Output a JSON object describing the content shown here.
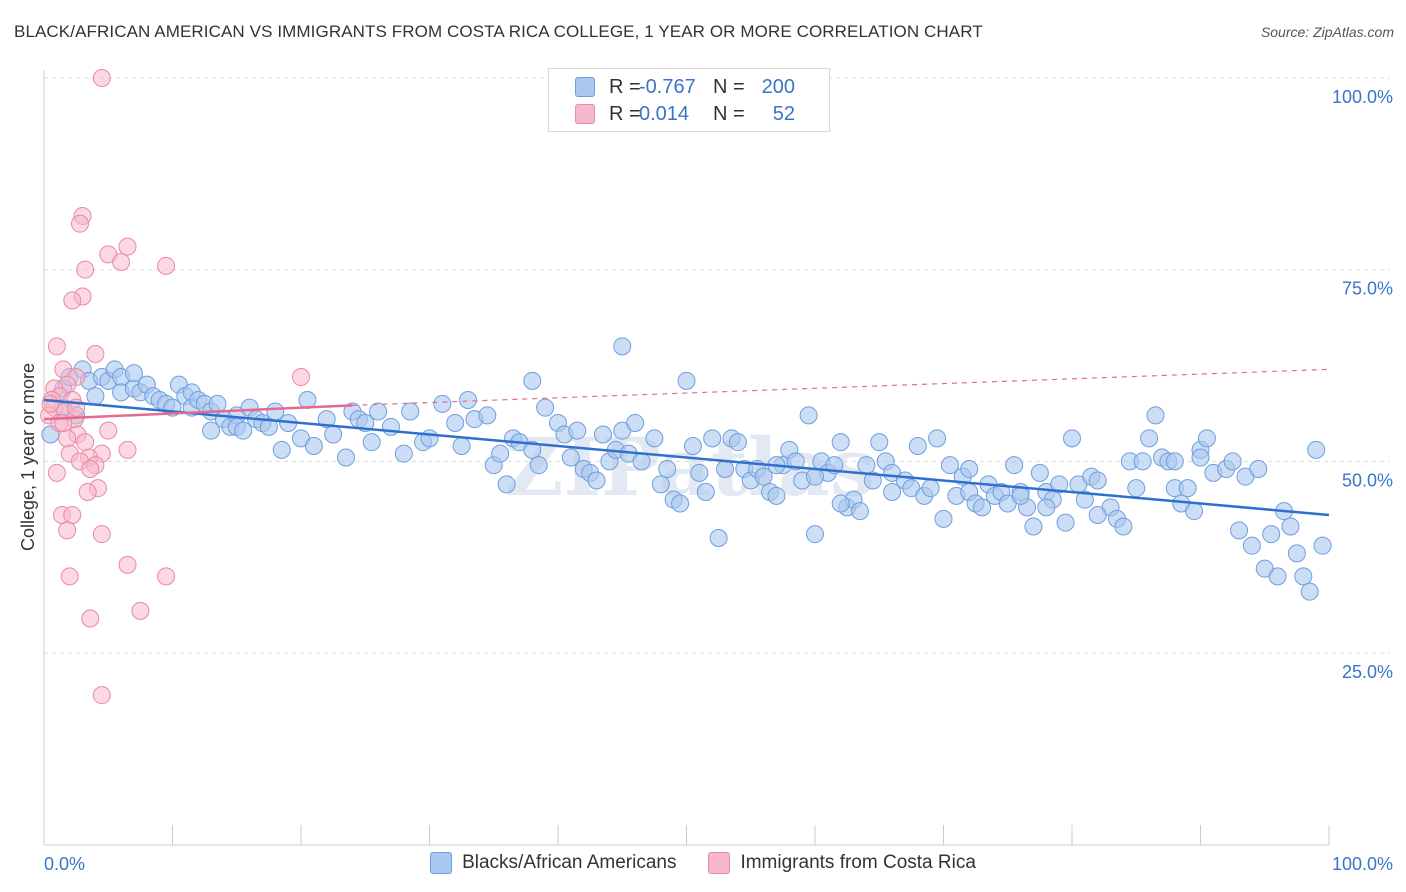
{
  "title": "BLACK/AFRICAN AMERICAN VS IMMIGRANTS FROM COSTA RICA COLLEGE, 1 YEAR OR MORE CORRELATION CHART",
  "source": "Source: ZipAtlas.com",
  "watermark": "ZIPatlas",
  "colors": {
    "blue_fill": "#aac8ef",
    "blue_stroke": "#6f9ede",
    "blue_line": "#2f6fcf",
    "pink_fill": "#f7b8cb",
    "pink_stroke": "#e98aa6",
    "pink_line": "#e36b93",
    "axis_label": "#3a74c9",
    "grid": "#d9d9d9"
  },
  "legend": {
    "rows": [
      {
        "r_label": "R =",
        "r_value": "-0.767",
        "n_label": "N =",
        "n_value": "200",
        "color": "#aac8ef"
      },
      {
        "r_label": "R =",
        "r_value": "0.014",
        "n_label": "N =",
        "n_value": "52",
        "color": "#f7b8cb"
      }
    ]
  },
  "bottom_legend": [
    {
      "label": "Blacks/African Americans",
      "color": "#aac8ef"
    },
    {
      "label": "Immigrants from Costa Rica",
      "color": "#f7b8cb"
    }
  ],
  "chart_data": {
    "type": "scatter",
    "title": "BLACK/AFRICAN AMERICAN VS IMMIGRANTS FROM COSTA RICA COLLEGE, 1 YEAR OR MORE CORRELATION CHART",
    "xlabel": "",
    "ylabel": "College, 1 year or more",
    "xlim": [
      0,
      100
    ],
    "ylim": [
      0,
      102
    ],
    "x_ticks": [
      "0.0%",
      "100.0%"
    ],
    "y_ticks": [
      {
        "value": 25,
        "label": "25.0%"
      },
      {
        "value": 50,
        "label": "50.0%"
      },
      {
        "value": 75,
        "label": "75.0%"
      },
      {
        "value": 100,
        "label": "100.0%"
      }
    ],
    "grid": true,
    "legend_position": "top-center",
    "series": [
      {
        "name": "Blacks/African Americans",
        "color": "#aac8ef",
        "trend": {
          "x0": 0,
          "y0": 58,
          "x1": 100,
          "y1": 43
        },
        "points": [
          [
            0.5,
            53.5
          ],
          [
            1.5,
            57.0
          ],
          [
            1.5,
            59.5
          ],
          [
            2.0,
            61.0
          ],
          [
            2.5,
            56.0
          ],
          [
            3.0,
            62.0
          ],
          [
            3.5,
            60.5
          ],
          [
            4.0,
            58.5
          ],
          [
            4.5,
            61.0
          ],
          [
            5.0,
            60.5
          ],
          [
            5.5,
            62.0
          ],
          [
            6.0,
            61.0
          ],
          [
            6.0,
            59.0
          ],
          [
            7.0,
            59.5
          ],
          [
            7.0,
            61.5
          ],
          [
            7.5,
            59.0
          ],
          [
            8.0,
            60.0
          ],
          [
            8.5,
            58.5
          ],
          [
            9.0,
            58.0
          ],
          [
            9.5,
            57.5
          ],
          [
            10.0,
            57.0
          ],
          [
            10.5,
            60.0
          ],
          [
            11.0,
            58.5
          ],
          [
            11.5,
            59.0
          ],
          [
            11.5,
            57.0
          ],
          [
            12.0,
            58.0
          ],
          [
            12.5,
            57.5
          ],
          [
            13.0,
            56.5
          ],
          [
            13.0,
            54.0
          ],
          [
            13.5,
            57.5
          ],
          [
            14.0,
            55.5
          ],
          [
            14.5,
            54.5
          ],
          [
            15.0,
            56.0
          ],
          [
            15.0,
            54.5
          ],
          [
            15.5,
            54.0
          ],
          [
            16.0,
            57.0
          ],
          [
            16.5,
            55.5
          ],
          [
            17.0,
            55.0
          ],
          [
            17.5,
            54.5
          ],
          [
            18.0,
            56.5
          ],
          [
            18.5,
            51.5
          ],
          [
            19.0,
            55.0
          ],
          [
            20.0,
            53.0
          ],
          [
            20.5,
            58.0
          ],
          [
            21.0,
            52.0
          ],
          [
            22.0,
            55.5
          ],
          [
            22.5,
            53.5
          ],
          [
            23.5,
            50.5
          ],
          [
            24.0,
            56.5
          ],
          [
            24.5,
            55.5
          ],
          [
            25.0,
            55.0
          ],
          [
            25.5,
            52.5
          ],
          [
            26.0,
            56.5
          ],
          [
            27.0,
            54.5
          ],
          [
            28.0,
            51.0
          ],
          [
            28.5,
            56.5
          ],
          [
            29.5,
            52.5
          ],
          [
            30.0,
            53.0
          ],
          [
            31.0,
            57.5
          ],
          [
            32.0,
            55.0
          ],
          [
            32.5,
            52.0
          ],
          [
            33.0,
            58.0
          ],
          [
            33.5,
            55.5
          ],
          [
            34.5,
            56.0
          ],
          [
            35.0,
            49.5
          ],
          [
            35.5,
            51.0
          ],
          [
            36.0,
            47.0
          ],
          [
            36.5,
            53.0
          ],
          [
            37.0,
            52.5
          ],
          [
            38.0,
            51.5
          ],
          [
            38.5,
            49.5
          ],
          [
            39.0,
            57.0
          ],
          [
            40.0,
            55.0
          ],
          [
            40.5,
            53.5
          ],
          [
            41.0,
            50.5
          ],
          [
            41.5,
            54.0
          ],
          [
            42.0,
            49.0
          ],
          [
            42.5,
            48.5
          ],
          [
            43.0,
            47.5
          ],
          [
            43.5,
            53.5
          ],
          [
            44.0,
            50.0
          ],
          [
            44.5,
            51.5
          ],
          [
            45.0,
            54.0
          ],
          [
            45.5,
            51.0
          ],
          [
            46.0,
            55.0
          ],
          [
            46.5,
            50.0
          ],
          [
            47.5,
            53.0
          ],
          [
            48.0,
            47.0
          ],
          [
            48.5,
            49.0
          ],
          [
            49.0,
            45.0
          ],
          [
            49.5,
            44.5
          ],
          [
            50.5,
            52.0
          ],
          [
            51.0,
            48.5
          ],
          [
            51.5,
            46.0
          ],
          [
            52.0,
            53.0
          ],
          [
            52.5,
            40.0
          ],
          [
            53.0,
            49.0
          ],
          [
            53.5,
            53.0
          ],
          [
            54.0,
            52.5
          ],
          [
            54.5,
            49.0
          ],
          [
            55.0,
            47.5
          ],
          [
            55.5,
            49.0
          ],
          [
            56.0,
            48.0
          ],
          [
            56.5,
            46.0
          ],
          [
            57.0,
            45.5
          ],
          [
            57.5,
            49.5
          ],
          [
            58.0,
            51.5
          ],
          [
            58.5,
            50.0
          ],
          [
            59.0,
            47.5
          ],
          [
            59.5,
            56.0
          ],
          [
            60.0,
            40.5
          ],
          [
            60.5,
            50.0
          ],
          [
            61.0,
            48.5
          ],
          [
            61.5,
            49.5
          ],
          [
            62.0,
            52.5
          ],
          [
            62.5,
            44.0
          ],
          [
            63.0,
            45.0
          ],
          [
            63.5,
            43.5
          ],
          [
            64.0,
            49.5
          ],
          [
            64.5,
            47.5
          ],
          [
            65.0,
            52.5
          ],
          [
            65.5,
            50.0
          ],
          [
            66.0,
            48.5
          ],
          [
            67.0,
            47.5
          ],
          [
            67.5,
            46.5
          ],
          [
            68.0,
            52.0
          ],
          [
            68.5,
            45.5
          ],
          [
            69.0,
            46.5
          ],
          [
            69.5,
            53.0
          ],
          [
            70.0,
            42.5
          ],
          [
            70.5,
            49.5
          ],
          [
            71.0,
            45.5
          ],
          [
            71.5,
            48.0
          ],
          [
            72.0,
            46.0
          ],
          [
            72.5,
            44.5
          ],
          [
            73.0,
            44.0
          ],
          [
            73.5,
            47.0
          ],
          [
            74.0,
            45.5
          ],
          [
            74.5,
            46.0
          ],
          [
            75.0,
            44.5
          ],
          [
            75.5,
            49.5
          ],
          [
            76.0,
            46.0
          ],
          [
            76.5,
            44.0
          ],
          [
            77.0,
            41.5
          ],
          [
            77.5,
            48.5
          ],
          [
            78.0,
            46.0
          ],
          [
            78.5,
            45.0
          ],
          [
            79.0,
            47.0
          ],
          [
            79.5,
            42.0
          ],
          [
            80.0,
            53.0
          ],
          [
            80.5,
            47.0
          ],
          [
            81.0,
            45.0
          ],
          [
            81.5,
            48.0
          ],
          [
            82.0,
            47.5
          ],
          [
            83.0,
            44.0
          ],
          [
            83.5,
            42.5
          ],
          [
            84.0,
            41.5
          ],
          [
            84.5,
            50.0
          ],
          [
            85.0,
            46.5
          ],
          [
            85.5,
            50.0
          ],
          [
            86.0,
            53.0
          ],
          [
            86.5,
            56.0
          ],
          [
            87.0,
            50.5
          ],
          [
            87.5,
            50.0
          ],
          [
            88.0,
            46.5
          ],
          [
            88.5,
            44.5
          ],
          [
            89.0,
            46.5
          ],
          [
            89.5,
            43.5
          ],
          [
            90.0,
            51.5
          ],
          [
            90.5,
            53.0
          ],
          [
            91.0,
            48.5
          ],
          [
            92.0,
            49.0
          ],
          [
            92.5,
            50.0
          ],
          [
            93.0,
            41.0
          ],
          [
            93.5,
            48.0
          ],
          [
            94.0,
            39.0
          ],
          [
            94.5,
            49.0
          ],
          [
            95.0,
            36.0
          ],
          [
            95.5,
            40.5
          ],
          [
            96.0,
            35.0
          ],
          [
            96.5,
            43.5
          ],
          [
            97.0,
            41.5
          ],
          [
            97.5,
            38.0
          ],
          [
            98.0,
            35.0
          ],
          [
            98.5,
            33.0
          ],
          [
            99.0,
            51.5
          ],
          [
            99.5,
            39.0
          ],
          [
            57.0,
            49.5
          ],
          [
            62.0,
            44.5
          ],
          [
            88.0,
            50.0
          ],
          [
            90.0,
            50.5
          ],
          [
            82.0,
            43.0
          ],
          [
            78.0,
            44.0
          ],
          [
            66.0,
            46.0
          ],
          [
            60.0,
            48.0
          ],
          [
            45.0,
            65.0
          ],
          [
            50.0,
            60.5
          ],
          [
            38.0,
            60.5
          ],
          [
            72.0,
            49.0
          ],
          [
            76.0,
            45.5
          ]
        ]
      },
      {
        "name": "Immigrants from Costa Rica",
        "color": "#f7b8cb",
        "trend": {
          "x0": 0,
          "y0": 55.5,
          "x1": 24,
          "y1": 57.3
        },
        "trend_dashed": {
          "x0": 24,
          "y0": 57.3,
          "x1": 100,
          "y1": 62.0
        },
        "points": [
          [
            4.5,
            100.0
          ],
          [
            3.0,
            82.0
          ],
          [
            2.8,
            81.0
          ],
          [
            6.5,
            78.0
          ],
          [
            5.0,
            77.0
          ],
          [
            6.0,
            76.0
          ],
          [
            9.5,
            75.5
          ],
          [
            3.2,
            75.0
          ],
          [
            3.0,
            71.5
          ],
          [
            2.2,
            71.0
          ],
          [
            1.0,
            65.0
          ],
          [
            4.0,
            64.0
          ],
          [
            20.0,
            61.0
          ],
          [
            1.5,
            62.0
          ],
          [
            2.5,
            61.0
          ],
          [
            1.8,
            60.0
          ],
          [
            0.8,
            59.5
          ],
          [
            1.2,
            58.5
          ],
          [
            0.6,
            58.0
          ],
          [
            2.2,
            58.0
          ],
          [
            0.8,
            57.0
          ],
          [
            1.6,
            56.5
          ],
          [
            0.4,
            56.0
          ],
          [
            2.4,
            55.5
          ],
          [
            1.2,
            55.0
          ],
          [
            5.0,
            54.0
          ],
          [
            2.6,
            53.5
          ],
          [
            1.8,
            53.0
          ],
          [
            3.2,
            52.5
          ],
          [
            6.5,
            51.5
          ],
          [
            4.5,
            51.0
          ],
          [
            2.0,
            51.0
          ],
          [
            3.5,
            50.5
          ],
          [
            2.8,
            50.0
          ],
          [
            4.0,
            49.5
          ],
          [
            3.6,
            49.0
          ],
          [
            1.0,
            48.5
          ],
          [
            4.2,
            46.5
          ],
          [
            3.4,
            46.0
          ],
          [
            1.4,
            43.0
          ],
          [
            2.2,
            43.0
          ],
          [
            4.5,
            40.5
          ],
          [
            1.8,
            41.0
          ],
          [
            6.5,
            36.5
          ],
          [
            2.0,
            35.0
          ],
          [
            9.5,
            35.0
          ],
          [
            7.5,
            30.5
          ],
          [
            3.6,
            29.5
          ],
          [
            4.5,
            19.5
          ],
          [
            1.5,
            55.0
          ],
          [
            2.5,
            57.0
          ],
          [
            0.5,
            57.5
          ]
        ]
      }
    ]
  }
}
